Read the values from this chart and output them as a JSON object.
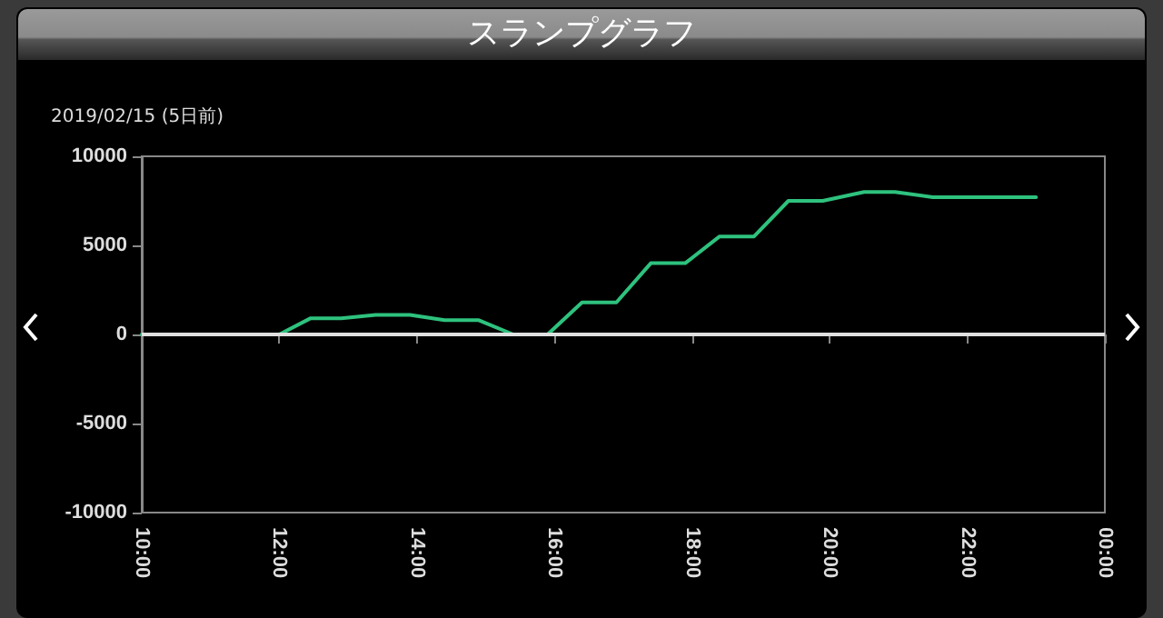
{
  "chart_data": {
    "type": "line",
    "title": "スランプグラフ",
    "subtitle": "2019/02/15 (5日前)",
    "x": [
      10,
      12,
      12.45,
      12.9,
      13.4,
      13.9,
      14.4,
      14.9,
      15.4,
      15.9,
      16.4,
      16.9,
      17.4,
      17.9,
      18.4,
      18.9,
      19.4,
      19.9,
      20.5,
      20.95,
      21.5,
      23
    ],
    "series": [
      {
        "color": "#2ec27e",
        "values": [
          0,
          0,
          900,
          900,
          1100,
          1100,
          800,
          800,
          0,
          0,
          1800,
          1800,
          4000,
          4000,
          5500,
          5500,
          7500,
          7500,
          8000,
          8000,
          7700,
          7700
        ]
      }
    ],
    "xlim": [
      10,
      24
    ],
    "xticks": [
      {
        "value": 10,
        "label": "10:00"
      },
      {
        "value": 12,
        "label": "12:00"
      },
      {
        "value": 14,
        "label": "14:00"
      },
      {
        "value": 16,
        "label": "16:00"
      },
      {
        "value": 18,
        "label": "18:00"
      },
      {
        "value": 20,
        "label": "20:00"
      },
      {
        "value": 22,
        "label": "22:00"
      },
      {
        "value": 24,
        "label": "00:00"
      }
    ],
    "ylim": [
      -10000,
      10000
    ],
    "yticks": [
      -10000,
      -5000,
      0,
      5000,
      10000
    ],
    "ref_lines": [
      {
        "axis": "y",
        "value": 0,
        "color": "#e0e0e0"
      }
    ],
    "grid": false,
    "marker": "none",
    "line_style": "solid"
  }
}
